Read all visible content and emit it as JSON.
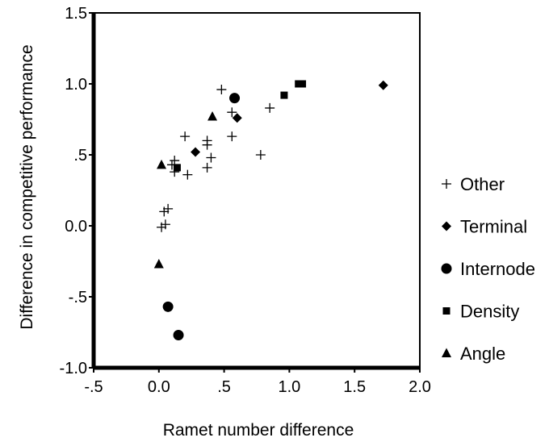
{
  "chart_data": {
    "type": "scatter",
    "title": "",
    "xlabel": "Ramet number difference",
    "ylabel": "Difference in competitive performance",
    "xlim": [
      -0.5,
      2.0
    ],
    "ylim": [
      -1.0,
      1.5
    ],
    "x_ticks": [
      -0.5,
      0.0,
      0.5,
      1.0,
      1.5,
      2.0
    ],
    "x_tick_labels": [
      "-.5",
      "0.0",
      ".5",
      "1.0",
      "1.5",
      "2.0"
    ],
    "y_ticks": [
      1.5,
      1.0,
      0.5,
      0.0,
      -0.5,
      -1.0
    ],
    "y_tick_labels": [
      "1.5",
      "1.0",
      ".5",
      "0.0",
      "-.5",
      "-1.0"
    ],
    "grid": false,
    "legend_position": "right",
    "series": [
      {
        "name": "Other",
        "marker": "plus",
        "points": [
          {
            "x": 0.48,
            "y": 0.96
          },
          {
            "x": 0.56,
            "y": 0.8
          },
          {
            "x": 0.85,
            "y": 0.83
          },
          {
            "x": 0.56,
            "y": 0.63
          },
          {
            "x": 0.2,
            "y": 0.63
          },
          {
            "x": 0.37,
            "y": 0.6
          },
          {
            "x": 0.37,
            "y": 0.57
          },
          {
            "x": 0.4,
            "y": 0.48
          },
          {
            "x": 0.37,
            "y": 0.41
          },
          {
            "x": 0.12,
            "y": 0.46
          },
          {
            "x": 0.1,
            "y": 0.43
          },
          {
            "x": 0.12,
            "y": 0.38
          },
          {
            "x": 0.22,
            "y": 0.36
          },
          {
            "x": 0.78,
            "y": 0.5
          },
          {
            "x": 0.07,
            "y": 0.12
          },
          {
            "x": 0.04,
            "y": 0.1
          },
          {
            "x": 0.05,
            "y": 0.01
          },
          {
            "x": 0.02,
            "y": -0.01
          }
        ]
      },
      {
        "name": "Terminal",
        "marker": "diamond",
        "points": [
          {
            "x": 1.72,
            "y": 0.99
          },
          {
            "x": 0.6,
            "y": 0.76
          },
          {
            "x": 0.28,
            "y": 0.52
          }
        ]
      },
      {
        "name": "Internode",
        "marker": "circle",
        "points": [
          {
            "x": 0.58,
            "y": 0.9
          },
          {
            "x": 0.07,
            "y": -0.57
          },
          {
            "x": 0.15,
            "y": -0.77
          }
        ]
      },
      {
        "name": "Density",
        "marker": "square",
        "points": [
          {
            "x": 1.07,
            "y": 1.0
          },
          {
            "x": 1.1,
            "y": 1.0
          },
          {
            "x": 0.96,
            "y": 0.92
          },
          {
            "x": 0.14,
            "y": 0.41
          }
        ]
      },
      {
        "name": "Angle",
        "marker": "triangle",
        "points": [
          {
            "x": 0.41,
            "y": 0.77
          },
          {
            "x": 0.02,
            "y": 0.43
          },
          {
            "x": 0.0,
            "y": -0.27
          }
        ]
      }
    ]
  },
  "colors": {
    "marker": "#000000",
    "axis": "#000000",
    "background": "#ffffff"
  }
}
